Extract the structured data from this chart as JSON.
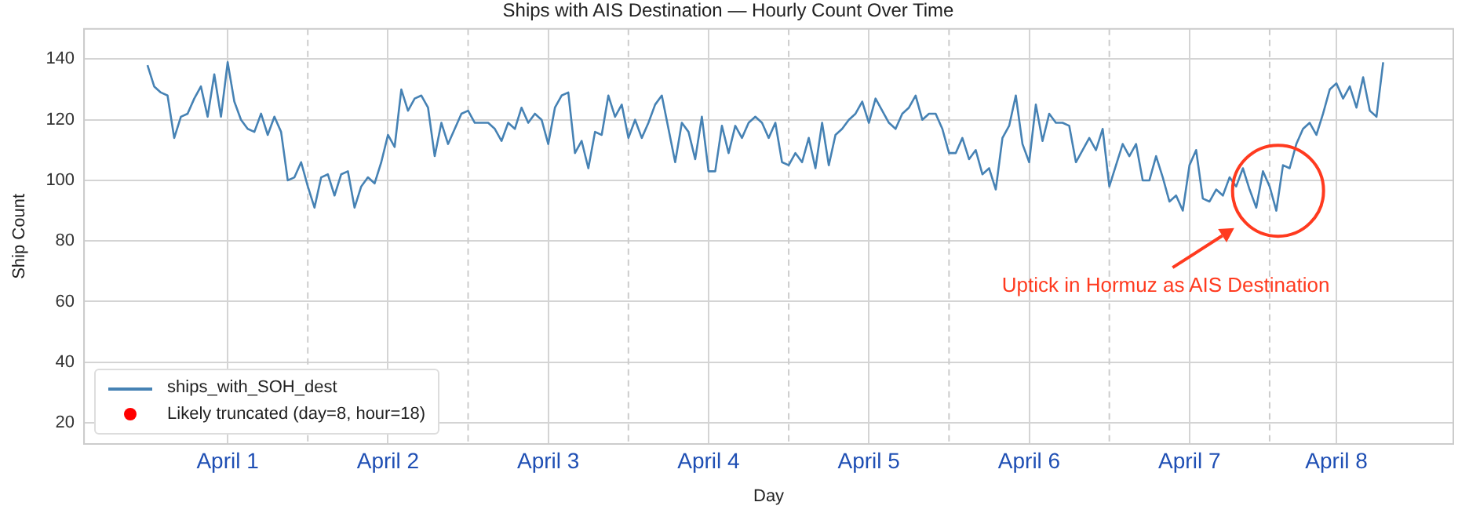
{
  "chart_data": {
    "type": "line",
    "title": "Ships with AIS Destination — Hourly Count Over Time",
    "xlabel": "Day",
    "ylabel": "Ship Count",
    "xlim": [
      "--03-31T14:30",
      "--04-09T03:30"
    ],
    "ylim": [
      13,
      150
    ],
    "xticks": [
      {
        "value": "--04-01T12:00",
        "label": "April 1"
      },
      {
        "value": "--04-02T12:00",
        "label": "April 2"
      },
      {
        "value": "--04-03T12:00",
        "label": "April 3"
      },
      {
        "value": "--04-04T12:00",
        "label": "April 4"
      },
      {
        "value": "--04-05T12:00",
        "label": "April 5"
      },
      {
        "value": "--04-06T12:00",
        "label": "April 6"
      },
      {
        "value": "--04-07T12:00",
        "label": "April 7"
      },
      {
        "value": "--04-08T10:00",
        "label": "April 8"
      }
    ],
    "yticks": [
      20,
      40,
      60,
      80,
      100,
      120,
      140
    ],
    "grid": true,
    "legend": "bottom left",
    "series": [
      {
        "name": "ships_with_SOH_dest",
        "color": "#4682b4",
        "x": [
          "--04-01T00:00",
          "--04-01T01:00",
          "--04-01T02:00",
          "--04-01T03:00",
          "--04-01T04:00",
          "--04-01T05:00",
          "--04-01T06:00",
          "--04-01T07:00",
          "--04-01T08:00",
          "--04-01T09:00",
          "--04-01T10:00",
          "--04-01T11:00",
          "--04-01T12:00",
          "--04-01T13:00",
          "--04-01T14:00",
          "--04-01T15:00",
          "--04-01T16:00",
          "--04-01T17:00",
          "--04-01T18:00",
          "--04-01T19:00",
          "--04-01T20:00",
          "--04-01T21:00",
          "--04-01T22:00",
          "--04-01T23:00",
          "--04-02T00:00",
          "--04-02T01:00",
          "--04-02T02:00",
          "--04-02T03:00",
          "--04-02T04:00",
          "--04-02T05:00",
          "--04-02T06:00",
          "--04-02T07:00",
          "--04-02T08:00",
          "--04-02T09:00",
          "--04-02T10:00",
          "--04-02T11:00",
          "--04-02T12:00",
          "--04-02T13:00",
          "--04-02T14:00",
          "--04-02T15:00",
          "--04-02T16:00",
          "--04-02T17:00",
          "--04-02T18:00",
          "--04-02T19:00",
          "--04-02T20:00",
          "--04-02T21:00",
          "--04-02T22:00",
          "--04-02T23:00",
          "--04-03T00:00",
          "--04-03T01:00",
          "--04-03T02:00",
          "--04-03T03:00",
          "--04-03T04:00",
          "--04-03T05:00",
          "--04-03T06:00",
          "--04-03T07:00",
          "--04-03T08:00",
          "--04-03T09:00",
          "--04-03T10:00",
          "--04-03T11:00",
          "--04-03T12:00",
          "--04-03T13:00",
          "--04-03T14:00",
          "--04-03T15:00",
          "--04-03T16:00",
          "--04-03T17:00",
          "--04-03T18:00",
          "--04-03T19:00",
          "--04-03T20:00",
          "--04-03T21:00",
          "--04-03T22:00",
          "--04-03T23:00",
          "--04-04T00:00",
          "--04-04T01:00",
          "--04-04T02:00",
          "--04-04T03:00",
          "--04-04T04:00",
          "--04-04T05:00",
          "--04-04T06:00",
          "--04-04T07:00",
          "--04-04T08:00",
          "--04-04T09:00",
          "--04-04T10:00",
          "--04-04T11:00",
          "--04-04T12:00",
          "--04-04T13:00",
          "--04-04T14:00",
          "--04-04T15:00",
          "--04-04T16:00",
          "--04-04T17:00",
          "--04-04T18:00",
          "--04-04T19:00",
          "--04-04T20:00",
          "--04-04T21:00",
          "--04-04T22:00",
          "--04-04T23:00",
          "--04-05T00:00",
          "--04-05T01:00",
          "--04-05T02:00",
          "--04-05T03:00",
          "--04-05T04:00",
          "--04-05T05:00",
          "--04-05T06:00",
          "--04-05T07:00",
          "--04-05T08:00",
          "--04-05T09:00",
          "--04-05T10:00",
          "--04-05T11:00",
          "--04-05T12:00",
          "--04-05T13:00",
          "--04-05T14:00",
          "--04-05T15:00",
          "--04-05T16:00",
          "--04-05T17:00",
          "--04-05T18:00",
          "--04-05T19:00",
          "--04-05T20:00",
          "--04-05T21:00",
          "--04-05T22:00",
          "--04-05T23:00",
          "--04-06T00:00",
          "--04-06T01:00",
          "--04-06T02:00",
          "--04-06T03:00",
          "--04-06T04:00",
          "--04-06T05:00",
          "--04-06T06:00",
          "--04-06T07:00",
          "--04-06T08:00",
          "--04-06T09:00",
          "--04-06T10:00",
          "--04-06T11:00",
          "--04-06T12:00",
          "--04-06T13:00",
          "--04-06T14:00",
          "--04-06T15:00",
          "--04-06T16:00",
          "--04-06T17:00",
          "--04-06T18:00",
          "--04-06T19:00",
          "--04-06T20:00",
          "--04-06T21:00",
          "--04-06T22:00",
          "--04-06T23:00",
          "--04-07T00:00",
          "--04-07T01:00",
          "--04-07T02:00",
          "--04-07T03:00",
          "--04-07T04:00",
          "--04-07T05:00",
          "--04-07T06:00",
          "--04-07T07:00",
          "--04-07T08:00",
          "--04-07T09:00",
          "--04-07T10:00",
          "--04-07T11:00",
          "--04-07T12:00",
          "--04-07T13:00",
          "--04-07T14:00",
          "--04-07T15:00",
          "--04-07T16:00",
          "--04-07T17:00",
          "--04-07T18:00",
          "--04-07T19:00",
          "--04-07T20:00",
          "--04-07T21:00",
          "--04-07T22:00",
          "--04-07T23:00",
          "--04-08T00:00",
          "--04-08T01:00",
          "--04-08T02:00",
          "--04-08T03:00",
          "--04-08T04:00",
          "--04-08T05:00",
          "--04-08T06:00",
          "--04-08T07:00",
          "--04-08T08:00",
          "--04-08T09:00",
          "--04-08T10:00",
          "--04-08T11:00",
          "--04-08T12:00",
          "--04-08T13:00",
          "--04-08T14:00",
          "--04-08T15:00",
          "--04-08T16:00",
          "--04-08T17:00"
        ],
        "values": [
          138,
          131,
          129,
          128,
          114,
          121,
          122,
          127,
          131,
          121,
          135,
          121,
          139,
          126,
          120,
          117,
          116,
          122,
          115,
          121,
          116,
          100,
          101,
          106,
          98,
          91,
          101,
          102,
          95,
          102,
          103,
          91,
          98,
          101,
          99,
          106,
          115,
          111,
          130,
          123,
          127,
          128,
          124,
          108,
          119,
          112,
          117,
          122,
          123,
          119,
          119,
          119,
          117,
          113,
          119,
          117,
          124,
          119,
          122,
          120,
          112,
          124,
          128,
          129,
          109,
          113,
          104,
          116,
          115,
          128,
          121,
          125,
          114,
          120,
          114,
          119,
          125,
          128,
          117,
          106,
          119,
          116,
          107,
          121,
          103,
          103,
          118,
          109,
          118,
          114,
          119,
          121,
          119,
          114,
          119,
          106,
          105,
          109,
          106,
          114,
          104,
          119,
          105,
          115,
          117,
          120,
          122,
          126,
          119,
          127,
          123,
          119,
          117,
          122,
          124,
          128,
          120,
          122,
          122,
          117,
          109,
          109,
          114,
          107,
          110,
          102,
          104,
          97,
          114,
          118,
          128,
          112,
          106,
          125,
          113,
          122,
          119,
          119,
          118,
          106,
          110,
          114,
          110,
          117,
          98,
          105,
          112,
          108,
          112,
          100,
          100,
          108,
          101,
          93,
          95,
          90,
          105,
          110,
          94,
          93,
          97,
          95,
          101,
          98,
          104,
          97,
          91,
          103,
          98,
          90,
          105,
          104,
          112,
          117,
          119,
          115,
          122,
          130,
          132,
          127,
          131,
          124,
          134,
          123,
          121,
          139
        ]
      },
      {
        "name": "Likely truncated (day=8, hour=18)",
        "type": "scatter",
        "color": "#ff0000"
      }
    ],
    "ref_lines": [
      {
        "axis": "x",
        "value": "--04-02T00:00",
        "color": "#cccccc",
        "line_style": "dashed"
      },
      {
        "axis": "x",
        "value": "--04-03T00:00",
        "color": "#cccccc",
        "line_style": "dashed"
      },
      {
        "axis": "x",
        "value": "--04-04T00:00",
        "color": "#cccccc",
        "line_style": "dashed"
      },
      {
        "axis": "x",
        "value": "--04-05T00:00",
        "color": "#cccccc",
        "line_style": "dashed"
      },
      {
        "axis": "x",
        "value": "--04-06T00:00",
        "color": "#cccccc",
        "line_style": "dashed"
      },
      {
        "axis": "x",
        "value": "--04-07T00:00",
        "color": "#cccccc",
        "line_style": "dashed"
      },
      {
        "axis": "x",
        "value": "--04-08T00:00",
        "color": "#cccccc",
        "line_style": "dashed"
      }
    ],
    "annotations": [
      "Uptick in Hormuz as AIS Destination"
    ]
  }
}
